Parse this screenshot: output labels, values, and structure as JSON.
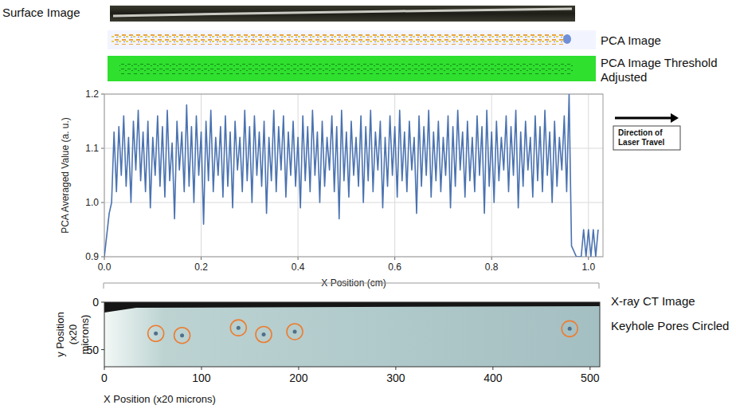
{
  "chart_data": [
    {
      "type": "line",
      "annotations": [
        "Surface Image",
        "PCA Image",
        "PCA Image Threshold Adjusted",
        "Direction of Laser Travel"
      ],
      "x_label": "X Position (cm)",
      "y_label": "PCA Averaged Value (a. u.)",
      "xlim": [
        0,
        1.03
      ],
      "ylim": [
        0.9,
        1.2
      ],
      "xticks": [
        {
          "value": 0,
          "label": "0.0"
        },
        0.2,
        0.4,
        0.6,
        0.8,
        {
          "value": 1,
          "label": "1.0"
        }
      ],
      "yticks": [
        0.9,
        {
          "value": 1,
          "label": "1.0"
        },
        1.1,
        1.2
      ],
      "grid": true,
      "x": [
        0,
        0.005,
        0.01,
        0.015,
        0.02,
        0.025,
        0.03,
        0.035,
        0.04,
        0.045,
        0.05,
        0.055,
        0.06,
        0.065,
        0.07,
        0.075,
        0.08,
        0.085,
        0.09,
        0.095,
        0.1,
        0.105,
        0.11,
        0.115,
        0.12,
        0.125,
        0.13,
        0.135,
        0.14,
        0.145,
        0.15,
        0.155,
        0.16,
        0.165,
        0.17,
        0.175,
        0.18,
        0.185,
        0.19,
        0.195,
        0.2,
        0.205,
        0.21,
        0.215,
        0.22,
        0.225,
        0.23,
        0.235,
        0.24,
        0.245,
        0.25,
        0.255,
        0.26,
        0.265,
        0.27,
        0.275,
        0.28,
        0.285,
        0.29,
        0.295,
        0.3,
        0.305,
        0.31,
        0.315,
        0.32,
        0.325,
        0.33,
        0.335,
        0.34,
        0.345,
        0.35,
        0.355,
        0.36,
        0.365,
        0.37,
        0.375,
        0.38,
        0.385,
        0.39,
        0.395,
        0.4,
        0.405,
        0.41,
        0.415,
        0.42,
        0.425,
        0.43,
        0.435,
        0.44,
        0.445,
        0.45,
        0.455,
        0.46,
        0.465,
        0.47,
        0.475,
        0.48,
        0.485,
        0.49,
        0.495,
        0.5,
        0.505,
        0.51,
        0.515,
        0.52,
        0.525,
        0.53,
        0.535,
        0.54,
        0.545,
        0.55,
        0.555,
        0.56,
        0.565,
        0.57,
        0.575,
        0.58,
        0.585,
        0.59,
        0.595,
        0.6,
        0.605,
        0.61,
        0.615,
        0.62,
        0.625,
        0.63,
        0.635,
        0.64,
        0.645,
        0.65,
        0.655,
        0.66,
        0.665,
        0.67,
        0.675,
        0.68,
        0.685,
        0.69,
        0.695,
        0.7,
        0.705,
        0.71,
        0.715,
        0.72,
        0.725,
        0.73,
        0.735,
        0.74,
        0.745,
        0.75,
        0.755,
        0.76,
        0.765,
        0.77,
        0.775,
        0.78,
        0.785,
        0.79,
        0.795,
        0.8,
        0.805,
        0.81,
        0.815,
        0.82,
        0.825,
        0.83,
        0.835,
        0.84,
        0.845,
        0.85,
        0.855,
        0.86,
        0.865,
        0.87,
        0.875,
        0.88,
        0.885,
        0.89,
        0.895,
        0.9,
        0.905,
        0.91,
        0.915,
        0.92,
        0.925,
        0.93,
        0.935,
        0.94,
        0.945,
        0.95,
        0.955,
        0.96,
        0.965,
        0.97,
        0.975,
        0.98,
        0.985,
        0.99,
        0.995,
        1.0,
        1.005,
        1.01,
        1.015,
        1.02
      ],
      "series": [
        {
          "color": "#4a72b0",
          "values": [
            0.9,
            0.94,
            0.98,
            1.0,
            1.13,
            1.02,
            1.14,
            1.05,
            1.16,
            1.03,
            1.12,
            1.0,
            1.15,
            1.06,
            1.17,
            1.04,
            1.13,
            1.02,
            1.15,
            0.99,
            1.12,
            1.05,
            1.16,
            1.03,
            1.14,
            1.01,
            1.17,
            1.04,
            1.11,
            0.97,
            1.15,
            1.06,
            1.13,
            1.02,
            1.18,
            1.03,
            1.14,
            1.0,
            1.16,
            1.05,
            1.13,
            0.96,
            1.15,
            1.04,
            1.17,
            1.02,
            1.12,
            1.05,
            1.14,
            1.01,
            1.16,
            1.03,
            1.13,
            0.99,
            1.15,
            1.06,
            1.12,
            1.02,
            1.17,
            1.04,
            1.14,
            1.0,
            1.16,
            1.05,
            1.13,
            1.03,
            1.15,
            0.98,
            1.12,
            1.04,
            1.17,
            1.02,
            1.14,
            1.06,
            1.16,
            1.01,
            1.13,
            1.05,
            1.15,
            1.03,
            1.12,
            0.99,
            1.16,
            1.04,
            1.14,
            1.02,
            1.17,
            1.05,
            1.13,
            1.0,
            1.15,
            1.03,
            1.12,
            1.06,
            1.16,
            1.02,
            1.14,
            0.97,
            1.17,
            1.04,
            1.13,
            1.01,
            1.15,
            1.05,
            1.12,
            1.03,
            1.16,
            1.0,
            1.14,
            1.04,
            1.17,
            1.02,
            1.13,
            1.06,
            1.15,
            0.99,
            1.12,
            1.03,
            1.16,
            1.05,
            1.14,
            1.01,
            1.17,
            1.04,
            1.13,
            1.02,
            1.15,
            1.06,
            1.12,
            0.98,
            1.16,
            1.03,
            1.14,
            1.05,
            1.17,
            1.01,
            1.13,
            1.04,
            1.15,
            1.02,
            1.12,
            1.05,
            1.16,
            0.99,
            1.14,
            1.03,
            1.17,
            1.06,
            1.13,
            1.01,
            1.15,
            1.04,
            1.12,
            1.02,
            1.16,
            1.05,
            1.14,
            0.98,
            1.17,
            1.03,
            1.13,
            1.0,
            1.15,
            1.04,
            1.12,
            1.06,
            1.16,
            1.02,
            1.14,
            1.05,
            1.17,
            0.99,
            1.13,
            1.03,
            1.15,
            1.06,
            1.12,
            1.01,
            1.16,
            1.04,
            1.14,
            1.02,
            1.17,
            1.05,
            1.13,
            1.0,
            1.15,
            1.03,
            1.12,
            1.06,
            1.16,
            1.02,
            1.2,
            0.92,
            0.91,
            0.9,
            0.9,
            0.9,
            0.95,
            0.9,
            0.95,
            0.9,
            0.95,
            0.9,
            0.95
          ]
        }
      ]
    },
    {
      "type": "scatter",
      "annotations": [
        "X-ray CT Image",
        "Keyhole Pores Circled"
      ],
      "x_label": "X Position (x20 microns)",
      "y_label": "y Position (x20 microns)",
      "xlim": [
        0,
        510
      ],
      "ylim": [
        68,
        0
      ],
      "xticks": [
        0,
        100,
        200,
        300,
        400,
        500
      ],
      "yticks": [
        0,
        50
      ],
      "grid": false,
      "x": [
        53,
        80,
        138,
        164,
        196,
        479
      ],
      "series": [
        {
          "color": "#ed7d31",
          "marker": "circle",
          "values": [
            33,
            35,
            27,
            34,
            31,
            28
          ]
        }
      ]
    }
  ]
}
